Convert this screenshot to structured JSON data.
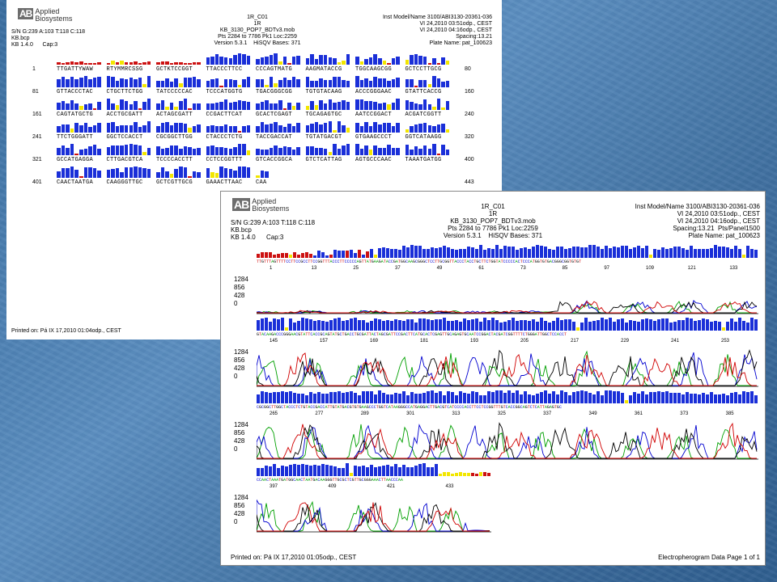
{
  "report_small": {
    "logo_mark": "AB",
    "logo_name_1": "Applied",
    "logo_name_2": "Biosystems",
    "left_lines": [
      "S/N G:239 A:103 T:118 C:118",
      "KB.bcp",
      "KB 1.4.0      Cap:3"
    ],
    "center_lines": [
      "1R_C01",
      "1R",
      "KB_3130_POP7_BDTv3.mob",
      "Pts 2284 to 7786 Pk1 Loc:2259",
      "Version 5.3.1    HiSQV Bases: 371"
    ],
    "right_lines": [
      "Inst Model/Name 3100/ABI3130-20361-036",
      "VI 24,2010 03:51odp., CEST",
      "VI 24,2010 04:16odp., CEST",
      "Spacing:13.21",
      "Plate Name: pat_100623"
    ],
    "rows": [
      {
        "start": "1",
        "end": "80",
        "groups": [
          "TTGATTYWAW",
          "RTYMMRCSSG",
          "GCTKTCCGGT",
          "TTACCCTTCC",
          "CCCAGTMATG",
          "AAGMATACCG",
          "TGGCAAGCGG",
          "GCTCCTTGCG"
        ]
      },
      {
        "start": "81",
        "end": "160",
        "groups": [
          "GTTACCCTAC",
          "CTGCTTCTGG",
          "TATCCCCCAC",
          "TCCCATGGTG",
          "TGACGGGCGG",
          "TGTGTACAAG",
          "ACCCGGGAAC",
          "GTATTCACCG"
        ]
      },
      {
        "start": "161",
        "end": "240",
        "groups": [
          "CAGTATGCTG",
          "ACCTGCGATT",
          "ACTAGCGATT",
          "CCGACTTCAT",
          "GCACTCGAGT",
          "TGCAGAGTGC",
          "AATCCGGACT",
          "ACGATCGGTT"
        ]
      },
      {
        "start": "241",
        "end": "320",
        "groups": [
          "TTCTGGGATT",
          "GGCTCCACCT",
          "CGCGGCTTGG",
          "CTACCCTCTG",
          "TACCGACCAT",
          "TGTATGACGT",
          "GTGAAGCCCT",
          "GGTCATAAGG"
        ]
      },
      {
        "start": "321",
        "end": "400",
        "groups": [
          "GCCATGAGGA",
          "CTTGACGTCA",
          "TCCCCACCTT",
          "CCTCCGGTTT",
          "GTCACCGGCA",
          "GTCTCATTAG",
          "AGTGCCCAAC",
          "TAAATGATGG"
        ]
      },
      {
        "start": "401",
        "end": "443",
        "groups": [
          "CAACTAATGA",
          "CAAGGGTTGC",
          "GCTCGTTGCG",
          "GAAACTTAAC",
          "CAA"
        ]
      }
    ],
    "printed_on": "Printed on: Pá IX 17,2010 01:04odp., CEST"
  },
  "report_large": {
    "logo_mark": "AB",
    "logo_name_1": "Applied",
    "logo_name_2": "Biosystems",
    "left_lines": [
      "S/N G:239 A:103 T:118 C:118",
      "KB.bcp",
      "KB 1.4.0      Cap:3"
    ],
    "center_lines": [
      "1R_C01",
      "1R",
      "KB_3130_POP7_BDTv3.mob",
      "Pts 2284 to 7786 Pk1 Loc:2259",
      "Version 5.3.1    HiSQV Bases: 371"
    ],
    "right_lines": [
      "Inst Model/Name 3100/ABI3130-20361-036",
      "VI 24,2010 03:51odp., CEST",
      "VI 24,2010 04:16odp., CEST",
      "Spacing:13.21  Pts/Panel1500",
      "Plate Name: pat_100623"
    ],
    "panels": [
      {
        "seq": "TTGTTTAGTTTTCCTTCCGCCTTCCGGTTTACCCTTCCCCCAGTTATGAAGATACCGATGGCAAGCGGGCTCCTTGCGGTTACCCTACCTGCTTCTGGTATCCCCCACTCCCATGGTGTGACGGGCGGTGTGT",
        "ticks": [
          "1",
          "13",
          "25",
          "37",
          "49",
          "61",
          "73",
          "85",
          "97",
          "109",
          "121",
          "133"
        ]
      },
      {
        "seq": "GTACAAGACCCGGGAACGTATTCACCGCAGTATGCTGACCTGCGATTACTAGCGATTCCGACTTCATGCACTCGAGTTGCAGAGTGCAATCCGGACTACGATCGGTTTTCTGGGATTGGCTCCACCT",
        "ticks": [
          "145",
          "157",
          "169",
          "181",
          "193",
          "205",
          "217",
          "229",
          "241",
          "253"
        ]
      },
      {
        "seq": "CGCGGCTTGGCTACCCTCTGTACCGACCATTGTATGACGTGTGAAGCCCTGGTCATAAGGGCCATGAGGACTTGACGTCATCCCCACCTTCCTCCGGTTTGTCACCGGCAGTCTCATTAGAGTGC",
        "ticks": [
          "265",
          "277",
          "289",
          "301",
          "313",
          "325",
          "337",
          "349",
          "361",
          "373",
          "385"
        ]
      },
      {
        "seq": "CCAACTAAATGATGGCAACTAATGACAAGGGTTGCGCTCGTTGCGGGAAACTTAACCCAA",
        "ticks": [
          "397",
          "409",
          "421",
          "433"
        ]
      }
    ],
    "y_ticks": [
      "1284",
      "856",
      "428",
      "0"
    ],
    "printed_on": "Printed on: Pá IX 17,2010 01:05odp., CEST",
    "footer_right": "Electropherogram Data   Page 1 of 1"
  },
  "colors": {
    "A": "#00a000",
    "C": "#0000d0",
    "G": "#000000",
    "T": "#d00000",
    "qv_high": "#1a2fd8",
    "qv_mid": "#f2e600",
    "qv_low": "#cc1111"
  }
}
